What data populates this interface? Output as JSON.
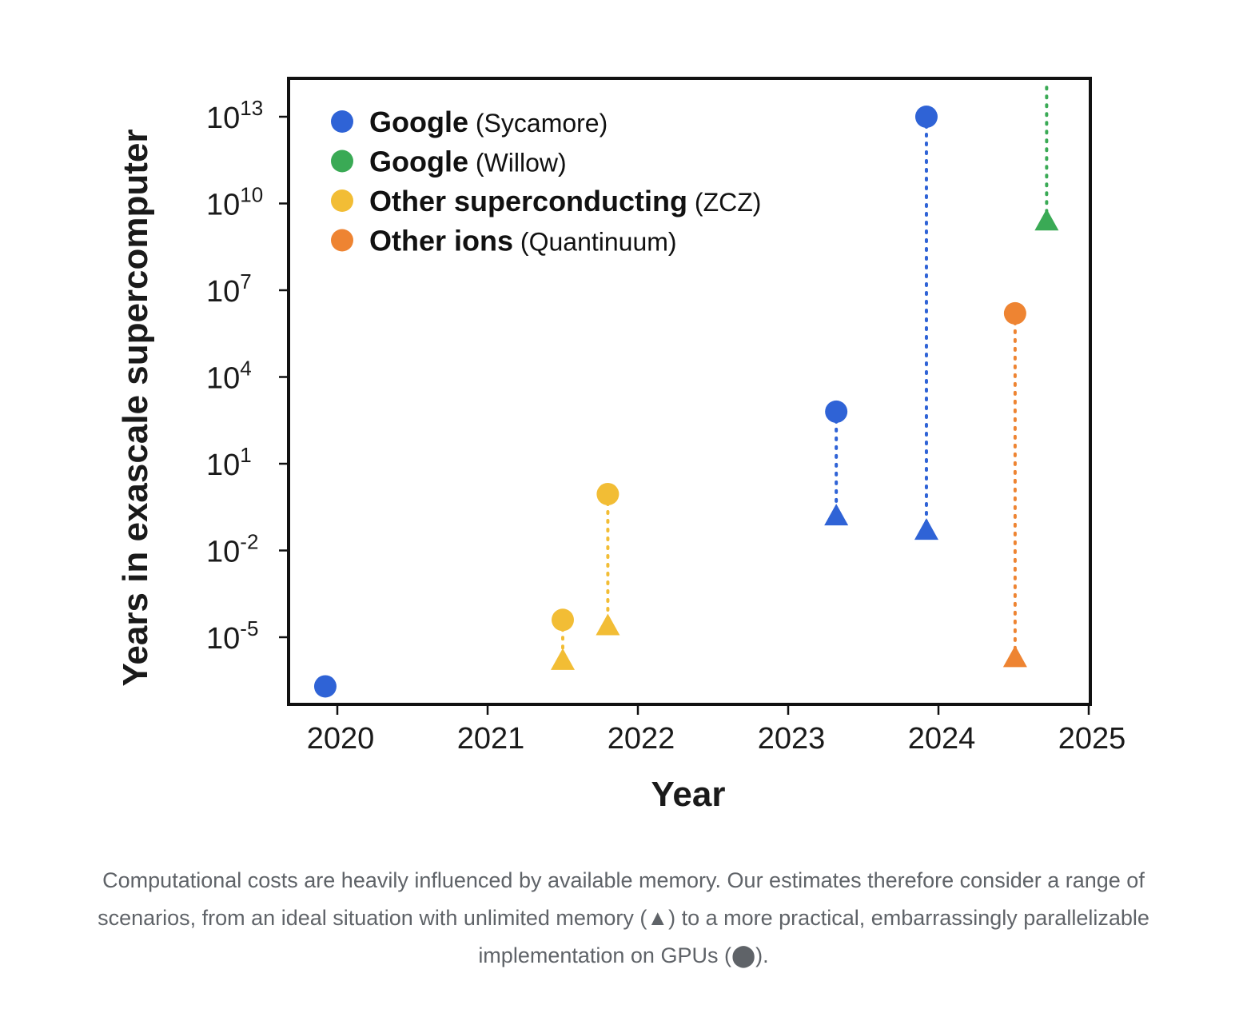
{
  "chart_data": {
    "type": "scatter",
    "title": "",
    "xlabel": "Year",
    "ylabel": "Years in exascale supercomputer",
    "xlim": [
      2019.88,
      2025.0
    ],
    "ylim": [
      -7.3,
      13.9
    ],
    "x_ticks": [
      "2020",
      "2021",
      "2022",
      "2023",
      "2024",
      "2025"
    ],
    "y_ticks": [
      {
        "exp": 13,
        "base": "10",
        "sup": "13"
      },
      {
        "exp": 10,
        "base": "10",
        "sup": "10"
      },
      {
        "exp": 7,
        "base": "10",
        "sup": "7"
      },
      {
        "exp": 4,
        "base": "10",
        "sup": "4"
      },
      {
        "exp": 1,
        "base": "10",
        "sup": "1"
      },
      {
        "exp": -2,
        "base": "10",
        "sup": "-2"
      },
      {
        "exp": -5,
        "base": "10",
        "sup": "-5"
      }
    ],
    "y_scale": "log10",
    "marker_legend": {
      "triangle": "ideal, unlimited memory",
      "circle": "GPU implementation"
    },
    "series": [
      {
        "name": "Google (Sycamore)",
        "bold": "Google",
        "detail": "(Sycamore)",
        "color": "#2f63d6",
        "points": [
          {
            "x": 2019.92,
            "gpu_log10": -6.7,
            "ideal_log10": null
          },
          {
            "x": 2023.32,
            "gpu_log10": 2.8,
            "ideal_log10": -0.8
          },
          {
            "x": 2023.92,
            "gpu_log10": 13.0,
            "ideal_log10": -1.3
          }
        ]
      },
      {
        "name": "Google (Willow)",
        "bold": "Google",
        "detail": "(Willow)",
        "color": "#3aaa55",
        "points": [
          {
            "x": 2024.72,
            "gpu_log10": null,
            "ideal_log10": 9.4,
            "arrow_up": true
          }
        ]
      },
      {
        "name": "Other superconducting (ZCZ)",
        "bold": "Other superconducting",
        "detail": "(ZCZ)",
        "color": "#f2bd35",
        "points": [
          {
            "x": 2021.5,
            "gpu_log10": -4.4,
            "ideal_log10": -5.8
          },
          {
            "x": 2021.8,
            "gpu_log10": -0.05,
            "ideal_log10": -4.6
          }
        ]
      },
      {
        "name": "Other ions (Quantinuum)",
        "bold": "Other ions",
        "detail": "(Quantinuum)",
        "color": "#ee8432",
        "points": [
          {
            "x": 2024.51,
            "gpu_log10": 6.2,
            "ideal_log10": -5.7
          }
        ]
      }
    ]
  },
  "caption": {
    "line1": "Computational costs are heavily influenced by available memory. Our estimates therefore consider a range of",
    "line2a": "scenarios, from an ideal situation with unlimited memory (",
    "triangle_glyph": "▲",
    "line2b": ") to a more practical, embarrassingly parallelizable",
    "line3a": "implementation on GPUs (",
    "circle_glyph": "⬤",
    "line3b": ")."
  }
}
